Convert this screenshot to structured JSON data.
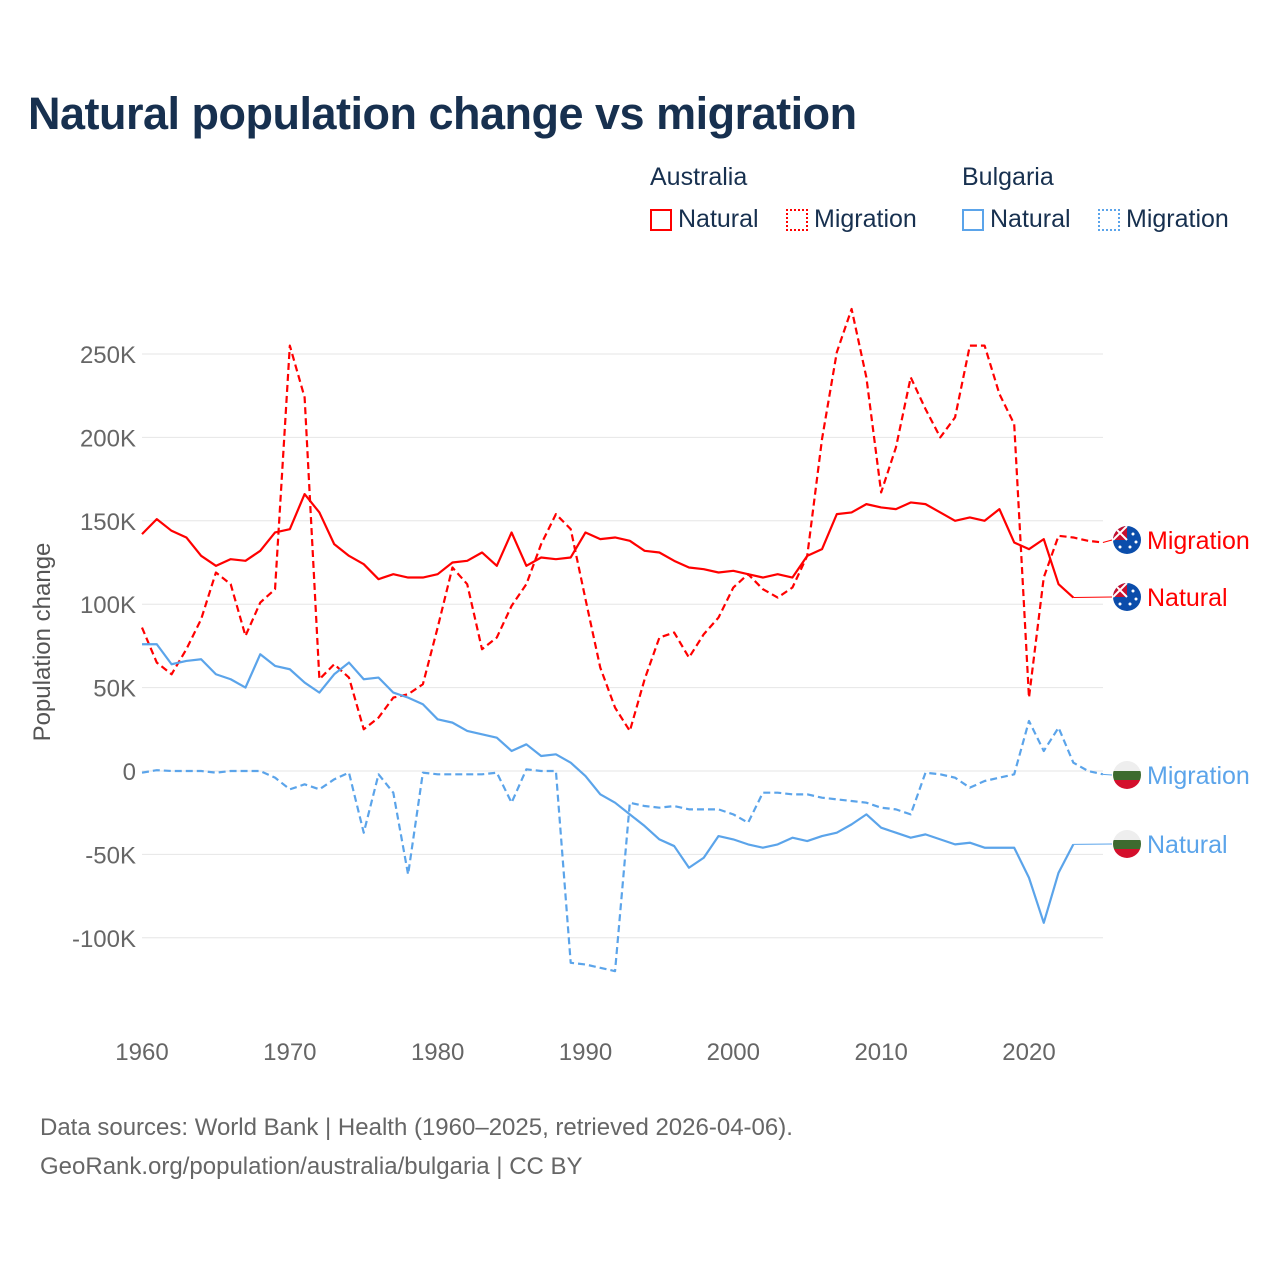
{
  "title": "Natural population change vs migration",
  "legend": {
    "groups": [
      {
        "name": "Australia",
        "items": [
          "Natural",
          "Migration"
        ],
        "color": "#ff0000"
      },
      {
        "name": "Bulgaria",
        "items": [
          "Natural",
          "Migration"
        ],
        "color": "#5ba4ea"
      }
    ]
  },
  "source": {
    "line1": "Data sources: World Bank | Health (1960–2025, retrieved 2026-04-06).",
    "line2": "GeoRank.org/population/australia/bulgaria | CC BY"
  },
  "chart_data": {
    "type": "line",
    "title": "Natural population change vs migration",
    "ylabel": "Population change",
    "xlabel": "",
    "xlim": [
      1960,
      2025
    ],
    "ylim": [
      -140000,
      280000
    ],
    "x_ticks": [
      1960,
      1970,
      1980,
      1990,
      2000,
      2010,
      2020
    ],
    "y_ticks": [
      {
        "v": 250000,
        "label": "250K"
      },
      {
        "v": 200000,
        "label": "200K"
      },
      {
        "v": 150000,
        "label": "150K"
      },
      {
        "v": 100000,
        "label": "100K"
      },
      {
        "v": 50000,
        "label": "50K"
      },
      {
        "v": 0,
        "label": "0"
      },
      {
        "v": -50000,
        "label": "-50K"
      },
      {
        "v": -100000,
        "label": "-100K"
      }
    ],
    "grid": true,
    "legend_position": "top-right",
    "series": [
      {
        "name": "Australia Natural",
        "label": "Natural",
        "country": "australia",
        "color": "#ff0000",
        "dash": false,
        "start": 1960,
        "values": [
          142,
          151,
          144,
          140,
          129,
          123,
          127,
          126,
          132,
          143,
          145,
          166,
          155,
          136,
          129,
          124,
          115,
          118,
          116,
          116,
          118,
          125,
          126,
          131,
          123,
          143,
          123,
          128,
          127,
          128,
          143,
          139,
          140,
          138,
          132,
          131,
          126,
          122,
          121,
          119,
          120,
          118,
          116,
          118,
          116,
          129,
          133,
          154,
          155,
          160,
          158,
          157,
          161,
          160,
          155,
          150,
          152,
          150,
          157,
          137,
          133,
          139,
          112,
          104
        ]
      },
      {
        "name": "Australia Migration",
        "label": "Migration",
        "country": "australia",
        "color": "#ff0000",
        "dash": true,
        "start": 1960,
        "values": [
          86,
          65,
          58,
          73,
          91,
          119,
          112,
          81,
          101,
          109,
          255,
          224,
          55,
          64,
          56,
          25,
          32,
          44,
          46,
          52,
          86,
          122,
          112,
          73,
          80,
          99,
          112,
          136,
          154,
          145,
          103,
          62,
          38,
          24,
          55,
          80,
          83,
          68,
          82,
          92,
          110,
          118,
          109,
          104,
          110,
          129,
          199,
          251,
          277,
          236,
          167,
          194,
          236,
          217,
          200,
          212,
          255,
          255,
          226,
          208,
          44,
          116,
          141,
          140,
          138,
          137
        ]
      },
      {
        "name": "Bulgaria Natural",
        "label": "Natural",
        "country": "bulgaria",
        "color": "#5ba4ea",
        "dash": false,
        "start": 1960,
        "values": [
          76,
          76,
          64,
          66,
          67,
          58,
          55,
          50,
          70,
          63,
          61,
          53,
          47,
          58,
          65,
          55,
          56,
          47,
          44,
          40,
          31,
          29,
          24,
          22,
          20,
          12,
          16,
          9,
          10,
          5,
          -3,
          -14,
          -19,
          -26,
          -33,
          -41,
          -45,
          -58,
          -52,
          -39,
          -41,
          -44,
          -46,
          -44,
          -40,
          -42,
          -39,
          -37,
          -32,
          -26,
          -34,
          -37,
          -40,
          -38,
          -41,
          -44,
          -43,
          -46,
          -46,
          -46,
          -64,
          -91,
          -61,
          -44
        ]
      },
      {
        "name": "Bulgaria Migration",
        "label": "Migration",
        "country": "bulgaria",
        "color": "#5ba4ea",
        "dash": true,
        "start": 1960,
        "values": [
          -1,
          0.5,
          0,
          0,
          0,
          -1,
          0,
          0,
          0,
          -4,
          -11,
          -8,
          -11,
          -5,
          -1,
          -37,
          -2,
          -13,
          -62,
          -1,
          -2,
          -2,
          -2,
          -2,
          -1,
          -19,
          1,
          0,
          0,
          -115,
          -116,
          -118,
          -120,
          -19,
          -21,
          -22,
          -21,
          -23,
          -23,
          -23,
          -26,
          -31,
          -13,
          -13,
          -14,
          -14,
          -16,
          -17,
          -18,
          -19,
          -22,
          -23,
          -26,
          -1,
          -2,
          -4,
          -10,
          -6,
          -4,
          -2,
          30,
          12,
          26,
          5,
          0,
          -2
        ]
      }
    ],
    "value_unit": "thousands"
  }
}
